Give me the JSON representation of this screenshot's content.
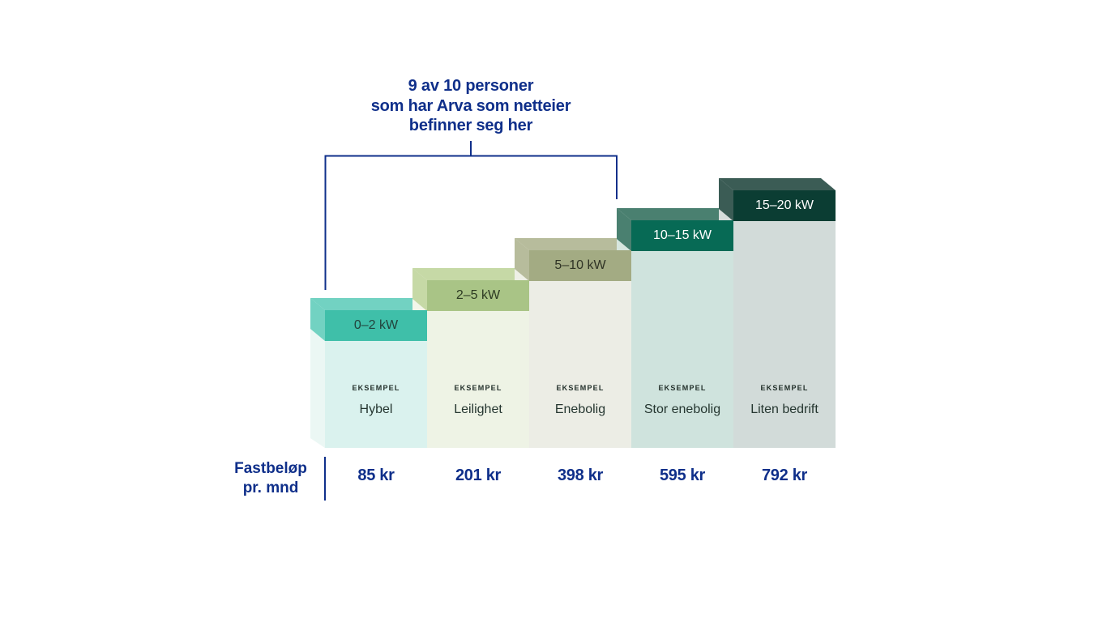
{
  "bracket": {
    "text_lines": [
      "9 av 10 personer",
      "som har Arva som netteier",
      "befinner seg her"
    ],
    "color": "#0f2f8a"
  },
  "price_label": {
    "lines": [
      "Fastbeløp",
      "pr. mnd"
    ]
  },
  "example_label": "EKSEMPEL",
  "columns": [
    {
      "range": "0–2 kW",
      "name": "Hybel",
      "price": "85 kr",
      "colors": {
        "cap": "#3fbfa9",
        "top": "#72d2c2",
        "side": "#ebf7f4",
        "body": "#daf2ee",
        "text": "#22433c"
      }
    },
    {
      "range": "2–5 kW",
      "name": "Leilighet",
      "price": "201 kr",
      "colors": {
        "cap": "#a9c486",
        "top": "#c6d9a6",
        "side": "#f3f6ea",
        "body": "#eef3e5",
        "text": "#2c3a22"
      }
    },
    {
      "range": "5–10 kW",
      "name": "Enebolig",
      "price": "398 kr",
      "colors": {
        "cap": "#a3ab83",
        "top": "#b7bc9c",
        "side": "#eef0e6",
        "body": "#ecede5",
        "text": "#2f3325"
      }
    },
    {
      "range": "10–15 kW",
      "name": "Stor enebolig",
      "price": "595 kr",
      "colors": {
        "cap": "#076a55",
        "top": "#4a8070",
        "side": "#d7e6df",
        "body": "#cfe3dd",
        "text": "#ffffff"
      }
    },
    {
      "range": "15–20 kW",
      "name": "Liten bedrift",
      "price": "792 kr",
      "colors": {
        "cap": "#0b3d33",
        "top": "#3b5c55",
        "side": "#d6dddb",
        "body": "#d2dbd9",
        "text": "#ffffff"
      }
    }
  ]
}
